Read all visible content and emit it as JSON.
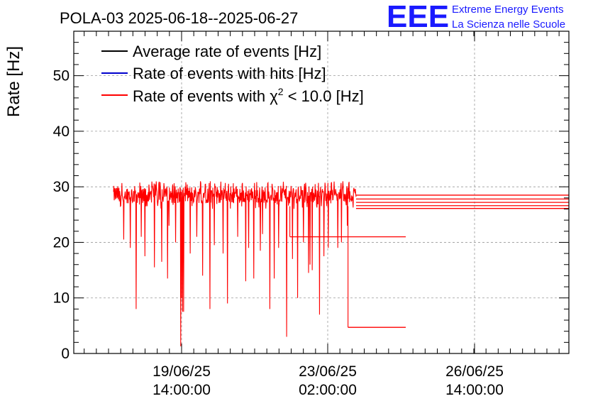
{
  "chart_data": {
    "type": "line",
    "title": "POLA-03 2025-06-18--2025-06-27",
    "xlabel": "",
    "ylabel": "Rate [Hz]",
    "ylim": [
      0,
      58
    ],
    "yticks": [
      0,
      10,
      20,
      30,
      40,
      50
    ],
    "xticks": [
      {
        "line1": "19/06/25",
        "line2": "14:00:00"
      },
      {
        "line1": "23/06/25",
        "line2": "02:00:00"
      },
      {
        "line1": "26/06/25",
        "line2": "14:00:00"
      }
    ],
    "grid": true,
    "legend_position": "top-left",
    "legend": [
      {
        "label": "Average rate of events [Hz]",
        "color": "#000000"
      },
      {
        "label": "Rate of events with hits [Hz]",
        "color": "#0000cc"
      },
      {
        "label_prefix": "Rate of events with ",
        "label_symbol": "χ",
        "label_sup": "2",
        "label_suffix": " < 10.0 [Hz]",
        "color": "#ff0000"
      }
    ],
    "series": [
      {
        "name": "Rate of events with χ2 < 10.0 [Hz]",
        "color": "#ff0000",
        "baseline_mean": 28.6,
        "baseline_range": [
          26.5,
          31.0
        ],
        "dips": [
          {
            "t": 0.07,
            "v": 20.5
          },
          {
            "t": 0.115,
            "v": 19
          },
          {
            "t": 0.155,
            "v": 8
          },
          {
            "t": 0.19,
            "v": 21
          },
          {
            "t": 0.215,
            "v": 17.5
          },
          {
            "t": 0.28,
            "v": 15.5
          },
          {
            "t": 0.33,
            "v": 16.5
          },
          {
            "t": 0.37,
            "v": 13.5
          },
          {
            "t": 0.38,
            "v": 23
          },
          {
            "t": 0.425,
            "v": 20
          },
          {
            "t": 0.46,
            "v": 1.3
          },
          {
            "t": 0.465,
            "v": 10
          },
          {
            "t": 0.473,
            "v": 7.5
          },
          {
            "t": 0.48,
            "v": 7.5
          },
          {
            "t": 0.525,
            "v": 18
          },
          {
            "t": 0.57,
            "v": 21
          },
          {
            "t": 0.61,
            "v": 14
          },
          {
            "t": 0.66,
            "v": 8
          },
          {
            "t": 0.69,
            "v": 19.5
          },
          {
            "t": 0.75,
            "v": 18
          },
          {
            "t": 0.78,
            "v": 9
          },
          {
            "t": 0.85,
            "v": 21
          },
          {
            "t": 0.905,
            "v": 13
          },
          {
            "t": 0.925,
            "v": 19
          },
          {
            "t": 0.96,
            "v": 13.5
          },
          {
            "t": 1.005,
            "v": 18.5
          },
          {
            "t": 1.02,
            "v": 21.5
          },
          {
            "t": 1.07,
            "v": 8
          },
          {
            "t": 1.1,
            "v": 13.5
          },
          {
            "t": 1.13,
            "v": 19
          },
          {
            "t": 1.185,
            "v": 3
          },
          {
            "t": 1.225,
            "v": 17
          },
          {
            "t": 1.26,
            "v": 10
          },
          {
            "t": 1.3,
            "v": 20
          },
          {
            "t": 1.335,
            "v": 14.5
          },
          {
            "t": 1.345,
            "v": 16
          },
          {
            "t": 1.36,
            "v": 15
          },
          {
            "t": 1.41,
            "v": 7
          },
          {
            "t": 1.44,
            "v": 17.5
          },
          {
            "t": 1.47,
            "v": 19
          },
          {
            "t": 1.535,
            "v": 19
          },
          {
            "t": 1.56,
            "v": 20
          },
          {
            "t": 1.6,
            "v": 23
          }
        ],
        "tail_levels": [
          28.5,
          27.8,
          27.2,
          26.6,
          26.1
        ],
        "steps": [
          {
            "t_start": 1.207,
            "t_end": 2.0,
            "v": 21.0
          },
          {
            "t_start": 1.605,
            "t_end": 2.0,
            "v": 4.7
          }
        ]
      }
    ]
  },
  "logo": {
    "mark": "EEE",
    "line1": "Extreme Energy Events",
    "line2": "La Scienza nelle Scuole"
  }
}
